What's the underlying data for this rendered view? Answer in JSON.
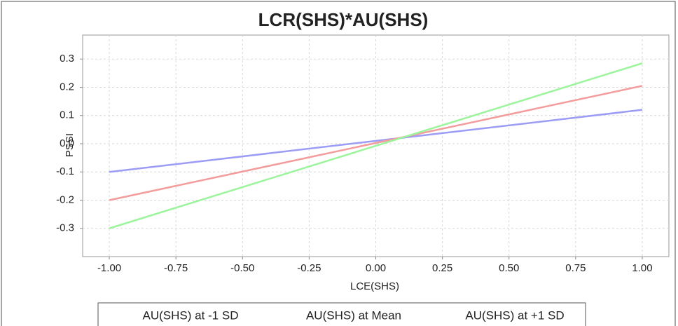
{
  "chart_data": {
    "type": "line",
    "title": "LCR(SHS)*AU(SHS)",
    "x_label": "LCE(SHS)",
    "y_label": "PSSI",
    "x": [
      -1,
      1
    ],
    "series": [
      {
        "name": "AU(SHS) at -1 SD",
        "color": "#9c9cf6",
        "values": [
          -0.1,
          0.12
        ]
      },
      {
        "name": "AU(SHS) at Mean",
        "color": "#f49c9c",
        "values": [
          -0.2,
          0.205
        ]
      },
      {
        "name": "AU(SHS) at +1 SD",
        "color": "#9cf49c",
        "values": [
          -0.3,
          0.285
        ]
      }
    ],
    "xlim": [
      -1.1,
      1.1
    ],
    "xticks": [
      {
        "value": -1,
        "label": "-1.00"
      },
      {
        "value": -0.75,
        "label": "-0.75"
      },
      {
        "value": -0.5,
        "label": "-0.50"
      },
      {
        "value": -0.25,
        "label": "-0.25"
      },
      {
        "value": 0,
        "label": "0.00"
      },
      {
        "value": 0.25,
        "label": "0.25"
      },
      {
        "value": 0.5,
        "label": "0.50"
      },
      {
        "value": 0.75,
        "label": "0.75"
      },
      {
        "value": 1,
        "label": "1.00"
      }
    ],
    "ylim": [
      -0.4,
      0.385
    ],
    "yticks": [
      -0.3,
      -0.2,
      -0.1,
      {
        "value": 0,
        "label": "0.0"
      },
      0.1,
      0.2,
      0.3
    ],
    "grid": true,
    "legend": "bottom"
  }
}
